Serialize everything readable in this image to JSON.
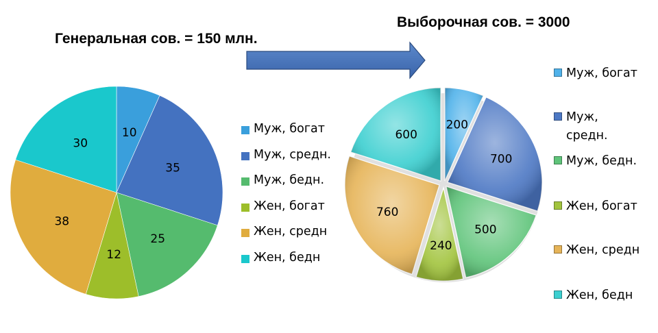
{
  "chart_data": [
    {
      "type": "pie",
      "title": "Генеральная сов. = 150 млн.",
      "categories": [
        "Муж, богат",
        "Муж, средн.",
        "Муж, бедн.",
        "Жен, богат",
        "Жен, средн",
        "Жен, бедн"
      ],
      "values": [
        10,
        35,
        25,
        12,
        38,
        30
      ],
      "colors": [
        "#3a9fdc",
        "#4472c0",
        "#55bb6e",
        "#9dbe2a",
        "#e0ac3e",
        "#1ac8cc"
      ],
      "legend_position": "right"
    },
    {
      "type": "pie",
      "title": "Выборочная сов. = 3000",
      "style": "3d",
      "categories": [
        "Муж, богат",
        "Муж, средн.",
        "Муж, бедн.",
        "Жен, богат",
        "Жен, средн",
        "Жен, бедн"
      ],
      "values": [
        200,
        700,
        500,
        240,
        760,
        600
      ],
      "colors": [
        "#50b2ea",
        "#4d78c4",
        "#5fc47a",
        "#a2c43e",
        "#e6b458",
        "#3ccfd0"
      ],
      "legend_position": "right"
    }
  ]
}
